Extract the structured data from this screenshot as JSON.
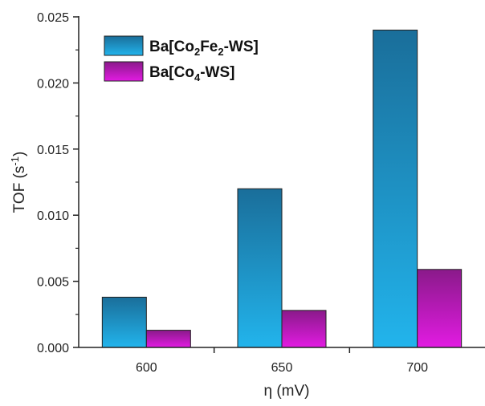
{
  "chart_data": {
    "type": "bar",
    "categories": [
      "600",
      "650",
      "700"
    ],
    "series": [
      {
        "name": "Ba[Co2Fe2-WS]",
        "values": [
          0.0038,
          0.012,
          0.024
        ],
        "color_top": "#1a6e9a",
        "color_bottom": "#22b4ec"
      },
      {
        "name": "Ba[Co4-WS]",
        "values": [
          0.0013,
          0.0028,
          0.0059
        ],
        "color_top": "#8a1a8a",
        "color_bottom": "#e21be2"
      }
    ],
    "legend_labels": [
      {
        "pre": "Ba[Co",
        "sub1": "2",
        "mid": "Fe",
        "sub2": "2",
        "post": "-WS]"
      },
      {
        "pre": "Ba[Co",
        "sub1": "4",
        "mid": "",
        "sub2": "",
        "post": "-WS]"
      }
    ],
    "xlabel": "η (mV)",
    "ylabel_pre": "TOF (s",
    "ylabel_sup": "-1",
    "ylabel_post": ")",
    "ylim": [
      0,
      0.025
    ],
    "yticks": [
      "0.000",
      "0.005",
      "0.010",
      "0.015",
      "0.020",
      "0.025"
    ],
    "legend_position": "top-left"
  }
}
